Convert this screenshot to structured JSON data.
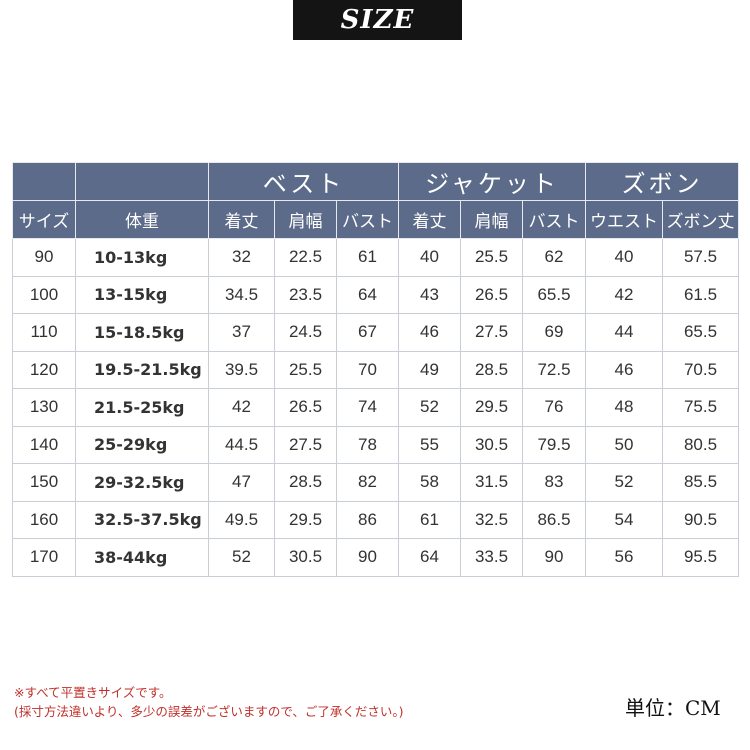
{
  "banner": {
    "title": "SIZE"
  },
  "table": {
    "group_headers": [
      "",
      "",
      "ベスト",
      "ジャケット",
      "ズボン"
    ],
    "columns": [
      "サイズ",
      "体重",
      "着丈",
      "肩幅",
      "バスト",
      "着丈",
      "肩幅",
      "バスト",
      "ウエスト",
      "ズボン丈"
    ],
    "rows": [
      [
        "90",
        "10-13kg",
        "32",
        "22.5",
        "61",
        "40",
        "25.5",
        "62",
        "40",
        "57.5"
      ],
      [
        "100",
        "13-15kg",
        "34.5",
        "23.5",
        "64",
        "43",
        "26.5",
        "65.5",
        "42",
        "61.5"
      ],
      [
        "110",
        "15-18.5kg",
        "37",
        "24.5",
        "67",
        "46",
        "27.5",
        "69",
        "44",
        "65.5"
      ],
      [
        "120",
        "19.5-21.5kg",
        "39.5",
        "25.5",
        "70",
        "49",
        "28.5",
        "72.5",
        "46",
        "70.5"
      ],
      [
        "130",
        "21.5-25kg",
        "42",
        "26.5",
        "74",
        "52",
        "29.5",
        "76",
        "48",
        "75.5"
      ],
      [
        "140",
        "25-29kg",
        "44.5",
        "27.5",
        "78",
        "55",
        "30.5",
        "79.5",
        "50",
        "80.5"
      ],
      [
        "150",
        "29-32.5kg",
        "47",
        "28.5",
        "82",
        "58",
        "31.5",
        "83",
        "52",
        "85.5"
      ],
      [
        "160",
        "32.5-37.5kg",
        "49.5",
        "29.5",
        "86",
        "61",
        "32.5",
        "86.5",
        "54",
        "90.5"
      ],
      [
        "170",
        "38-44kg",
        "52",
        "30.5",
        "90",
        "64",
        "33.5",
        "90",
        "56",
        "95.5"
      ]
    ]
  },
  "notes": {
    "line1": "※すべて平置きサイズです。",
    "line2": "(採寸方法違いより、多少の誤差がございますので、ご了承ください。)",
    "unit": "単位：CM"
  },
  "colors": {
    "header_bg": "#5d6b8a",
    "note_text": "#c0302a",
    "banner_bg": "#141414"
  }
}
